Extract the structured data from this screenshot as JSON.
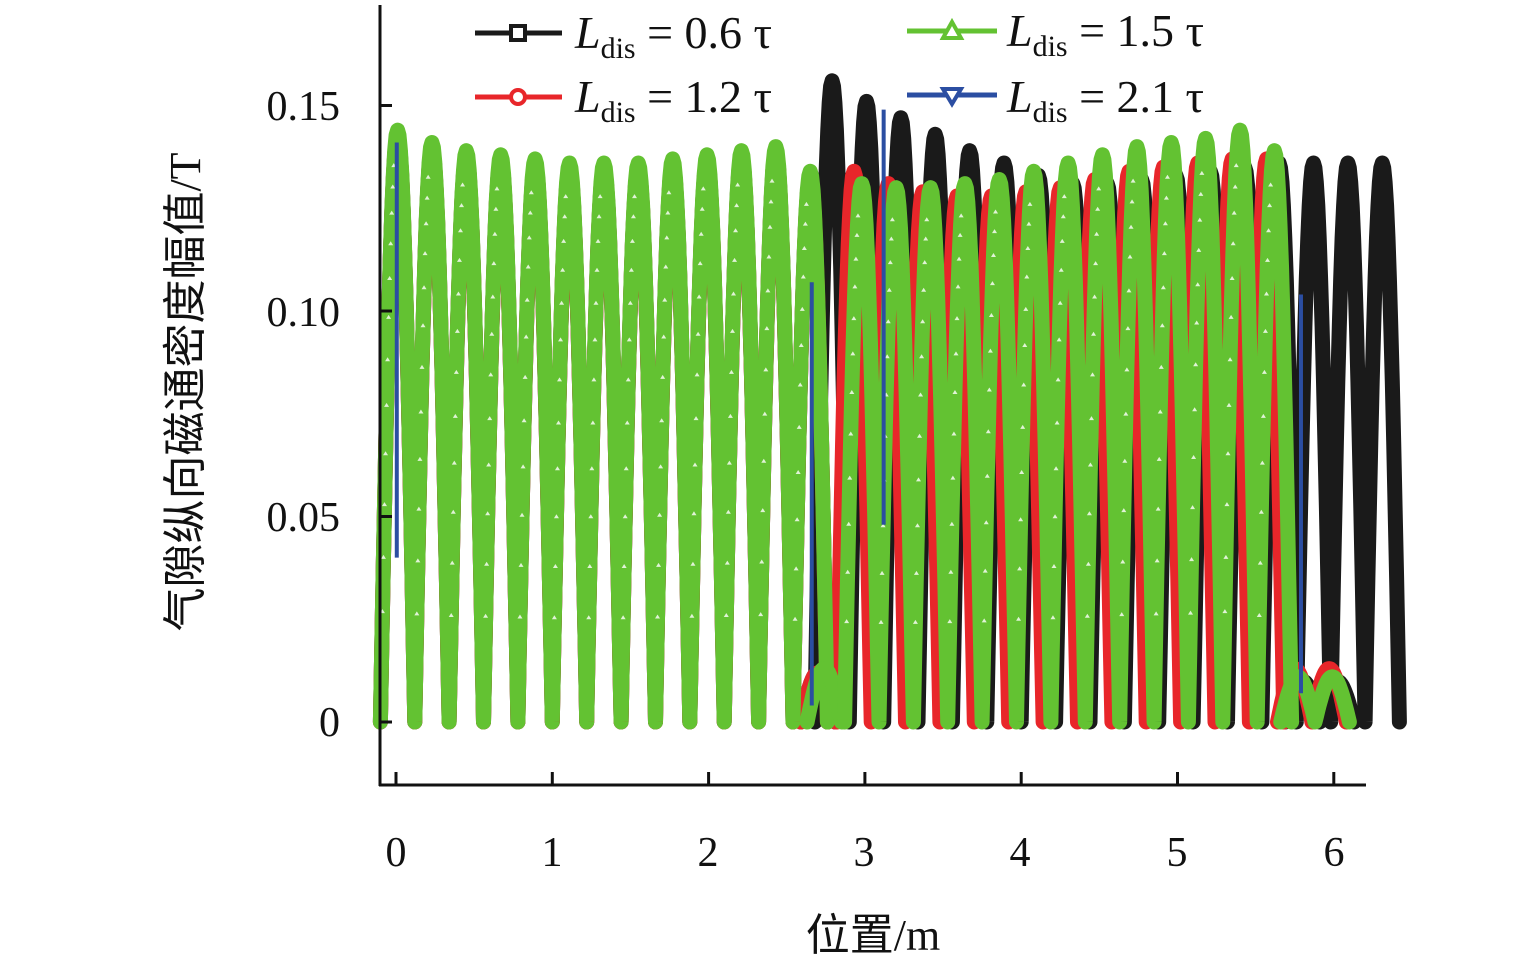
{
  "chart_data": {
    "type": "line",
    "title": "",
    "xlabel": "位置/m",
    "ylabel": "气隙纵向磁通密度幅值/T",
    "xlim": [
      -0.1,
      6.2
    ],
    "ylim": [
      -0.0155,
      0.174
    ],
    "xticks": [
      "0",
      "1",
      "2",
      "3",
      "4",
      "5",
      "6"
    ],
    "yticks": [
      "0",
      "0.05",
      "0.10",
      "0.15"
    ],
    "ytick_values": [
      0,
      0.05,
      0.1,
      0.15
    ],
    "xtick_values": [
      0,
      1,
      2,
      3,
      4,
      5,
      6
    ],
    "legend_placement": "top",
    "series": [
      {
        "name": "L_dis = 0.6 τ",
        "sym": "L",
        "sub": "dis",
        "rest": " = 0.6 τ",
        "color": "#1a1a1a",
        "marker": "square",
        "segments": [
          {
            "x0": 0.01,
            "period": 0.22,
            "amplitudes": [
              0.143,
              0.14,
              0.138,
              0.137,
              0.136,
              0.135,
              0.135,
              0.135,
              0.136,
              0.137,
              0.138,
              0.139,
              0.133
            ]
          },
          {
            "x0": 2.7,
            "period": 0.22,
            "amplitudes": [
              0.012
            ]
          },
          {
            "x0": 2.79,
            "period": 0.22,
            "amplitudes": [
              0.156,
              0.151,
              0.147,
              0.143,
              0.139,
              0.136,
              0.133,
              0.131,
              0.131,
              0.132,
              0.133,
              0.134,
              0.135,
              0.136,
              0.136,
              0.136,
              0.136
            ]
          },
          {
            "x0": 5.8,
            "period": 0.22,
            "amplitudes": [
              0.01,
              0.01
            ]
          }
        ]
      },
      {
        "name": "L_dis = 1.2 τ",
        "sym": "L",
        "sub": "dis",
        "rest": " = 1.2 τ",
        "color": "#e8262a",
        "marker": "circle",
        "segments": [
          {
            "x0": 0.01,
            "period": 0.22,
            "amplitudes": [
              0.143,
              0.14,
              0.138,
              0.137,
              0.136,
              0.135,
              0.135,
              0.135,
              0.136,
              0.137,
              0.138,
              0.139,
              0.133
            ]
          },
          {
            "x0": 2.7,
            "period": 0.22,
            "amplitudes": [
              0.012
            ]
          },
          {
            "x0": 2.93,
            "period": 0.22,
            "amplitudes": [
              0.134,
              0.131,
              0.129,
              0.128,
              0.128,
              0.129,
              0.13,
              0.132,
              0.134,
              0.135,
              0.136,
              0.137,
              0.137
            ]
          },
          {
            "x0": 5.75,
            "period": 0.22,
            "amplitudes": [
              0.013,
              0.013
            ]
          }
        ]
      },
      {
        "name": "L_dis = 1.5 τ",
        "sym": "L",
        "sub": "dis",
        "rest": " = 1.5 τ",
        "color": "#63c232",
        "marker": "triangle-up",
        "segments": [
          {
            "x0": 0.01,
            "period": 0.22,
            "amplitudes": [
              0.144,
              0.141,
              0.139,
              0.138,
              0.137,
              0.136,
              0.136,
              0.136,
              0.137,
              0.138,
              0.139,
              0.14,
              0.134
            ]
          },
          {
            "x0": 2.74,
            "period": 0.22,
            "amplitudes": [
              0.013
            ]
          },
          {
            "x0": 2.98,
            "period": 0.22,
            "amplitudes": [
              0.131,
              0.13,
              0.13,
              0.131,
              0.132,
              0.134,
              0.136,
              0.138,
              0.14,
              0.141,
              0.142,
              0.144,
              0.139
            ]
          },
          {
            "x0": 5.77,
            "period": 0.22,
            "amplitudes": [
              0.011,
              0.011
            ]
          }
        ]
      },
      {
        "name": "L_dis = 2.1 τ",
        "sym": "L",
        "sub": "dis",
        "rest": " = 2.1 τ",
        "color": "#2b4ea2",
        "marker": "triangle-down",
        "vertical_lines": [
          {
            "x": 0.005,
            "y_low": 0.04,
            "y_high": 0.141
          },
          {
            "x": 2.66,
            "y_low": 0.004,
            "y_high": 0.107
          },
          {
            "x": 3.12,
            "y_low": 0.048,
            "y_high": 0.149
          },
          {
            "x": 5.79,
            "y_low": 0.007,
            "y_high": 0.104
          }
        ]
      }
    ]
  }
}
